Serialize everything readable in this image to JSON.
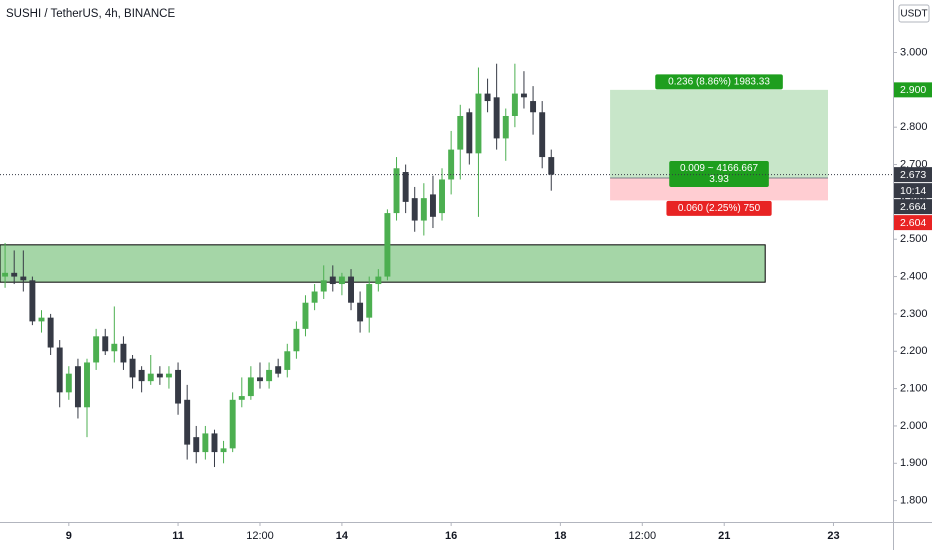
{
  "chart_data": {
    "type": "candlestick",
    "title": "SUSHI / TetherUS, 4h, BINANCE",
    "currency": "USDT",
    "up_color": "#4caf50",
    "down_color": "#363a45",
    "x": [
      7.833,
      8,
      8.167,
      8.333,
      8.5,
      8.667,
      8.833,
      9,
      9.167,
      9.333,
      9.5,
      9.667,
      9.833,
      10,
      10.167,
      10.333,
      10.5,
      10.667,
      10.833,
      11,
      11.167,
      11.333,
      11.5,
      11.667,
      11.833,
      12,
      12.167,
      12.333,
      12.5,
      12.667,
      12.833,
      13,
      13.167,
      13.333,
      13.5,
      13.667,
      13.833,
      14,
      14.167,
      14.333,
      14.5,
      14.667,
      14.833,
      15,
      15.167,
      15.333,
      15.5,
      15.667,
      15.833,
      16,
      16.167,
      16.333,
      16.5,
      16.667,
      16.833,
      17,
      17.167,
      17.333,
      17.5,
      17.667,
      17.833
    ],
    "open": [
      2.4,
      2.41,
      2.4,
      2.39,
      2.28,
      2.29,
      2.21,
      2.09,
      2.16,
      2.05,
      2.17,
      2.24,
      2.2,
      2.22,
      2.18,
      2.15,
      2.12,
      2.14,
      2.13,
      2.15,
      2.07,
      1.97,
      1.93,
      1.98,
      1.93,
      1.94,
      2.07,
      2.08,
      2.13,
      2.12,
      2.16,
      2.15,
      2.2,
      2.26,
      2.33,
      2.36,
      2.4,
      2.38,
      2.4,
      2.33,
      2.29,
      2.38,
      2.4,
      2.57,
      2.68,
      2.61,
      2.55,
      2.62,
      2.57,
      2.66,
      2.74,
      2.84,
      2.73,
      2.89,
      2.88,
      2.77,
      2.83,
      2.89,
      2.87,
      2.84,
      2.72
    ],
    "high": [
      2.49,
      2.47,
      2.47,
      2.4,
      2.31,
      2.3,
      2.23,
      2.16,
      2.18,
      2.18,
      2.26,
      2.26,
      2.32,
      2.24,
      2.19,
      2.16,
      2.19,
      2.16,
      2.16,
      2.17,
      2.11,
      2.0,
      2.0,
      1.99,
      1.96,
      2.09,
      2.13,
      2.16,
      2.17,
      2.17,
      2.18,
      2.22,
      2.28,
      2.35,
      2.38,
      2.43,
      2.43,
      2.41,
      2.42,
      2.36,
      2.4,
      2.42,
      2.58,
      2.72,
      2.7,
      2.64,
      2.65,
      2.67,
      2.69,
      2.79,
      2.86,
      2.85,
      2.96,
      2.93,
      2.97,
      2.85,
      2.97,
      2.95,
      2.91,
      2.87,
      2.74
    ],
    "low": [
      2.37,
      2.38,
      2.36,
      2.27,
      2.25,
      2.19,
      2.05,
      2.07,
      2.02,
      1.97,
      2.15,
      2.19,
      2.17,
      2.15,
      2.1,
      2.09,
      2.11,
      2.11,
      2.1,
      2.03,
      1.91,
      1.9,
      1.91,
      1.89,
      1.9,
      1.93,
      2.05,
      2.07,
      2.1,
      2.1,
      2.13,
      2.13,
      2.18,
      2.24,
      2.31,
      2.34,
      2.36,
      2.35,
      2.31,
      2.25,
      2.25,
      2.36,
      2.39,
      2.55,
      2.57,
      2.52,
      2.51,
      2.53,
      2.55,
      2.62,
      2.66,
      2.7,
      2.56,
      2.84,
      2.74,
      2.71,
      2.8,
      2.85,
      2.78,
      2.69,
      2.63
    ],
    "close": [
      2.41,
      2.4,
      2.39,
      2.28,
      2.29,
      2.21,
      2.09,
      2.14,
      2.05,
      2.17,
      2.24,
      2.2,
      2.22,
      2.17,
      2.13,
      2.12,
      2.14,
      2.13,
      2.14,
      2.06,
      1.95,
      1.93,
      1.98,
      1.93,
      1.94,
      2.07,
      2.08,
      2.13,
      2.12,
      2.15,
      2.14,
      2.2,
      2.26,
      2.33,
      2.36,
      2.39,
      2.38,
      2.4,
      2.33,
      2.28,
      2.38,
      2.4,
      2.57,
      2.69,
      2.6,
      2.55,
      2.61,
      2.56,
      2.66,
      2.74,
      2.83,
      2.73,
      2.89,
      2.87,
      2.77,
      2.83,
      2.89,
      2.88,
      2.84,
      2.72,
      2.673
    ],
    "xlim": [
      7.74,
      24.09
    ],
    "xticks": [
      9,
      11,
      {
        "value": 12.5,
        "label": "12:00"
      },
      14,
      16,
      18,
      {
        "value": 19.5,
        "label": "12:00"
      },
      21,
      23
    ],
    "ylim": [
      1.7428,
      3.1406
    ],
    "yticks": [
      {
        "value": 1.8,
        "label": "1.800"
      },
      {
        "value": 1.9,
        "label": "1.900"
      },
      {
        "value": 2.0,
        "label": "2.000"
      },
      {
        "value": 2.1,
        "label": "2.100"
      },
      {
        "value": 2.2,
        "label": "2.200"
      },
      {
        "value": 2.3,
        "label": "2.300"
      },
      {
        "value": 2.4,
        "label": "2.400"
      },
      {
        "value": 2.5,
        "label": "2.500"
      },
      {
        "value": 2.6,
        "label": "2.600"
      },
      {
        "value": 2.7,
        "label": "2.700"
      },
      {
        "value": 2.8,
        "label": "2.800"
      },
      {
        "value": 2.9,
        "label": "2.900"
      },
      {
        "value": 3.0,
        "label": "3.000"
      }
    ],
    "zone": {
      "x_range": [
        7.74,
        21.75
      ],
      "top": 2.485,
      "bottom": 2.385,
      "color": "#a5d6a7"
    },
    "position": {
      "x_range": [
        18.91,
        22.9
      ],
      "entry": 2.664,
      "target": 2.9,
      "stop": 2.604,
      "target_color": "#c8e6c9",
      "stop_color": "#ffcdd2",
      "target_label": "0.236 (8.86%) 1983.33",
      "entry_label": "0.009 ~ 4166.667",
      "entry_label_2": "3.93",
      "stop_label": "0.060 (2.25%) 750",
      "label_up_color": "#1e9e1e",
      "label_down_color": "#e82323"
    },
    "price_tags": [
      {
        "value": 2.9,
        "label": "2.900",
        "color": "#1e9e1e"
      },
      {
        "value": 2.673,
        "countdown": "10:14",
        "color": "#363a45"
      },
      {
        "value": 2.664,
        "color": "#363a45"
      },
      {
        "value": 2.604,
        "color": "#e82323"
      }
    ]
  }
}
